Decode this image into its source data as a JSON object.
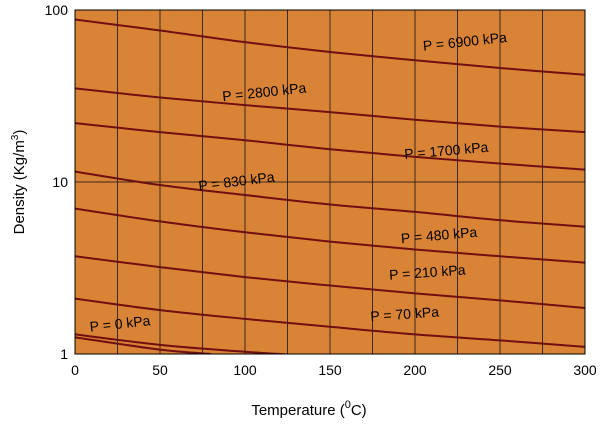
{
  "chart_data": {
    "type": "line",
    "title": "",
    "xlabel_main": "Temperature (",
    "xlabel_sup": "0",
    "xlabel_unit": "C)",
    "ylabel_main": "Density (Kg/m",
    "ylabel_sup": "3",
    "ylabel_end": ")",
    "xlim": [
      0,
      300
    ],
    "ylim": [
      1,
      100
    ],
    "y_scale": "log",
    "x_ticks": [
      "0",
      "50",
      "100",
      "150",
      "200",
      "250",
      "300"
    ],
    "y_ticks": [
      "1",
      "10",
      "100"
    ],
    "grid": true,
    "plot_background": "#D98336",
    "line_color": "#6E0F12",
    "grid_color": "#3A2A1E",
    "series": [
      {
        "name": "P = 6900 kPa",
        "x": [
          0,
          50,
          100,
          150,
          200,
          250,
          300
        ],
        "y": [
          88,
          76,
          65,
          57,
          51,
          46,
          42
        ]
      },
      {
        "name": "P = 2800 kPa",
        "x": [
          0,
          50,
          100,
          150,
          200,
          250,
          300
        ],
        "y": [
          35,
          31,
          28,
          25.5,
          23,
          21,
          19.5
        ]
      },
      {
        "name": "P = 1700 kPa",
        "x": [
          0,
          50,
          100,
          150,
          200,
          250,
          300
        ],
        "y": [
          22,
          19.5,
          17.5,
          15.5,
          14,
          12.8,
          11.8
        ]
      },
      {
        "name": "P = 830 kPa",
        "x": [
          0,
          50,
          100,
          150,
          200,
          250,
          300
        ],
        "y": [
          11.5,
          9.6,
          8.4,
          7.4,
          6.7,
          6.0,
          5.5
        ]
      },
      {
        "name": "",
        "x": [
          0,
          50,
          100,
          150,
          200,
          250,
          300
        ],
        "y": [
          7.0,
          5.9,
          5.1,
          4.5,
          4.05,
          3.7,
          3.4
        ]
      },
      {
        "name": "P = 480 kPa",
        "x": [
          0,
          50,
          100,
          150,
          200,
          250,
          300
        ],
        "y": [
          3.7,
          3.2,
          2.8,
          2.5,
          2.25,
          2.05,
          1.85
        ]
      },
      {
        "name": "P = 210 kPa",
        "x": [
          0,
          50,
          100,
          150,
          200,
          250,
          300
        ],
        "y": [
          2.1,
          1.8,
          1.6,
          1.44,
          1.3,
          1.2,
          1.1
        ]
      },
      {
        "name": "P = 70 kPa",
        "x": [
          0,
          50,
          100,
          150,
          200,
          250,
          300
        ],
        "y": [
          1.3,
          1.13,
          1.03,
          0.96,
          0.9,
          0.85,
          0.82
        ]
      },
      {
        "name": "P = 0 kPa",
        "x": [
          0,
          50,
          80
        ],
        "y": [
          1.25,
          1.06,
          1.0
        ]
      }
    ],
    "labels": [
      {
        "text": "P = 6900 kPa",
        "x": 205,
        "y": 58,
        "angle": -6
      },
      {
        "text": "P = 2800 kPa",
        "x": 87,
        "y": 29.5,
        "angle": -6
      },
      {
        "text": "P = 1700 kPa",
        "x": 194,
        "y": 13.6,
        "angle": -5
      },
      {
        "text": "P = 830 kPa",
        "x": 73,
        "y": 8.9,
        "angle": -7
      },
      {
        "text": "P = 480 kPa",
        "x": 192,
        "y": 4.4,
        "angle": -5
      },
      {
        "text": "P = 210 kPa",
        "x": 185,
        "y": 2.7,
        "angle": -4
      },
      {
        "text": "P = 70 kPa",
        "x": 174,
        "y": 1.55,
        "angle": -4
      },
      {
        "text": "P = 0 kPa",
        "x": 9,
        "y": 1.35,
        "angle": -6
      }
    ]
  }
}
